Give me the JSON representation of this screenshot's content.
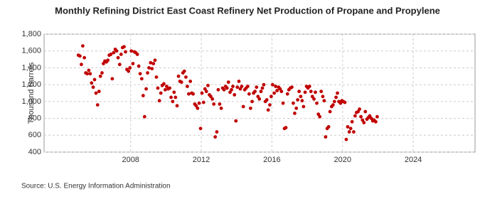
{
  "chart_data": {
    "type": "scatter",
    "title": "Monthly Refining District East Coast Refinery Net Production of Propane and Propylene",
    "y_label": "Thousand Barrels",
    "source": "Source: U.S. Energy Information Administration",
    "color": "#c00000",
    "grid": true,
    "xlim": [
      2003.1,
      2027.5
    ],
    "xticks": [
      2008,
      2012,
      2016,
      2020,
      2024
    ],
    "ylim": [
      400,
      1800
    ],
    "yticks": [
      400,
      600,
      800,
      {
        "value": 1000,
        "label": "1,000"
      },
      {
        "value": 1200,
        "label": "1,200"
      },
      {
        "value": 1400,
        "label": "1,400"
      },
      {
        "value": 1600,
        "label": "1,600"
      },
      {
        "value": 1800,
        "label": "1,800"
      }
    ],
    "x": [
      2005.04,
      2005.13,
      2005.21,
      2005.29,
      2005.38,
      2005.46,
      2005.54,
      2005.63,
      2005.71,
      2005.79,
      2005.88,
      2005.96,
      2006.04,
      2006.13,
      2006.21,
      2006.29,
      2006.38,
      2006.46,
      2006.54,
      2006.63,
      2006.71,
      2006.79,
      2006.88,
      2006.96,
      2007.04,
      2007.13,
      2007.21,
      2007.29,
      2007.38,
      2007.46,
      2007.54,
      2007.63,
      2007.71,
      2007.79,
      2007.88,
      2007.96,
      2008.04,
      2008.13,
      2008.21,
      2008.29,
      2008.38,
      2008.46,
      2008.54,
      2008.63,
      2008.71,
      2008.79,
      2008.88,
      2008.96,
      2009.04,
      2009.13,
      2009.21,
      2009.29,
      2009.38,
      2009.46,
      2009.54,
      2009.63,
      2009.71,
      2009.79,
      2009.88,
      2009.96,
      2010.04,
      2010.13,
      2010.21,
      2010.29,
      2010.38,
      2010.46,
      2010.54,
      2010.63,
      2010.71,
      2010.79,
      2010.88,
      2010.96,
      2011.04,
      2011.13,
      2011.21,
      2011.29,
      2011.38,
      2011.46,
      2011.54,
      2011.63,
      2011.71,
      2011.79,
      2011.88,
      2011.96,
      2012.04,
      2012.13,
      2012.21,
      2012.29,
      2012.38,
      2012.46,
      2012.54,
      2012.63,
      2012.71,
      2012.79,
      2012.88,
      2012.96,
      2013.04,
      2013.13,
      2013.21,
      2013.29,
      2013.38,
      2013.46,
      2013.54,
      2013.63,
      2013.71,
      2013.79,
      2013.88,
      2013.96,
      2014.04,
      2014.13,
      2014.21,
      2014.29,
      2014.38,
      2014.46,
      2014.54,
      2014.63,
      2014.71,
      2014.79,
      2014.88,
      2014.96,
      2015.04,
      2015.13,
      2015.21,
      2015.29,
      2015.38,
      2015.46,
      2015.54,
      2015.63,
      2015.71,
      2015.79,
      2015.88,
      2015.96,
      2016.04,
      2016.13,
      2016.21,
      2016.29,
      2016.38,
      2016.46,
      2016.54,
      2016.63,
      2016.71,
      2016.79,
      2016.88,
      2016.96,
      2017.04,
      2017.13,
      2017.21,
      2017.29,
      2017.38,
      2017.46,
      2017.54,
      2017.63,
      2017.71,
      2017.79,
      2017.88,
      2017.96,
      2018.04,
      2018.13,
      2018.21,
      2018.29,
      2018.38,
      2018.46,
      2018.54,
      2018.63,
      2018.71,
      2018.79,
      2018.88,
      2018.96,
      2019.04,
      2019.13,
      2019.21,
      2019.29,
      2019.38,
      2019.46,
      2019.54,
      2019.63,
      2019.71,
      2019.79,
      2019.88,
      2019.96,
      2020.04,
      2020.13,
      2020.21,
      2020.29,
      2020.38,
      2020.46,
      2020.54,
      2020.63,
      2020.71,
      2020.79,
      2020.88,
      2020.96,
      2021.04,
      2021.13,
      2021.21,
      2021.29,
      2021.38,
      2021.46,
      2021.54,
      2021.63,
      2021.71,
      2021.79,
      2021.88,
      2021.96
    ],
    "values": [
      1550,
      1540,
      1440,
      1660,
      1520,
      1340,
      1330,
      1370,
      1330,
      1220,
      1170,
      1260,
      1100,
      960,
      1120,
      1300,
      1340,
      1450,
      1480,
      1470,
      1490,
      1550,
      1560,
      1270,
      1580,
      1620,
      1600,
      1520,
      1440,
      1560,
      1640,
      1650,
      1590,
      1380,
      1360,
      1400,
      1600,
      1450,
      1590,
      1580,
      1560,
      1420,
      1330,
      1270,
      1070,
      820,
      1150,
      1340,
      1400,
      1460,
      1390,
      1450,
      1490,
      1290,
      1160,
      1010,
      1100,
      1190,
      1210,
      1140,
      1180,
      1150,
      1160,
      1050,
      1000,
      1110,
      1050,
      950,
      1300,
      1240,
      1230,
      1340,
      1360,
      1290,
      1180,
      1090,
      1240,
      1100,
      1090,
      970,
      950,
      920,
      980,
      680,
      1100,
      990,
      1150,
      1120,
      1190,
      1080,
      1060,
      1030,
      970,
      580,
      640,
      1140,
      970,
      920,
      1160,
      1140,
      1180,
      1160,
      1230,
      1110,
      1140,
      1180,
      1080,
      770,
      1170,
      1240,
      1150,
      1180,
      940,
      1140,
      1160,
      1180,
      1090,
      920,
      1000,
      1100,
      1120,
      1170,
      1060,
      1030,
      1120,
      1160,
      1200,
      1000,
      1020,
      900,
      960,
      1060,
      1200,
      1100,
      1180,
      1130,
      1170,
      1150,
      1120,
      980,
      680,
      690,
      1090,
      1140,
      1160,
      1170,
      980,
      860,
      920,
      1020,
      1120,
      1060,
      1010,
      940,
      1110,
      1180,
      1160,
      1180,
      1120,
      1060,
      1030,
      1110,
      980,
      850,
      820,
      1120,
      1060,
      1010,
      580,
      680,
      700,
      880,
      940,
      960,
      1000,
      1050,
      1100,
      1000,
      980,
      1010,
      1000,
      990,
      550,
      700,
      640,
      680,
      760,
      640,
      830,
      870,
      880,
      910,
      820,
      780,
      750,
      880,
      790,
      810,
      830,
      800,
      770,
      780,
      760,
      820
    ]
  }
}
